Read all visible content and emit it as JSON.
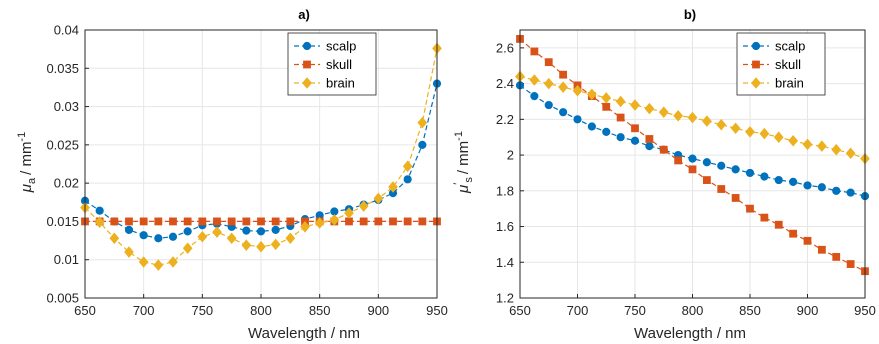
{
  "chart_data": [
    {
      "type": "line",
      "title": "a)",
      "xlabel": "Wavelength / nm",
      "ylabel": {
        "sym": "μ",
        "sub": "a",
        "unit": "/ mm",
        "sup": "-1"
      },
      "xlim": [
        650,
        950
      ],
      "ylim": [
        0.005,
        0.04
      ],
      "xticks": [
        650,
        700,
        750,
        800,
        850,
        900,
        950
      ],
      "yticks": [
        0.005,
        0.01,
        0.015,
        0.02,
        0.025,
        0.03,
        0.035,
        0.04
      ],
      "ytick_labels": [
        "0.005",
        "0.01",
        "0.015",
        "0.02",
        "0.025",
        "0.03",
        "0.035",
        "0.04"
      ],
      "grid": true,
      "legend_position": "top-right",
      "x": [
        650,
        662.5,
        675,
        687.5,
        700,
        712.5,
        725,
        737.5,
        750,
        762.5,
        775,
        787.5,
        800,
        812.5,
        825,
        837.5,
        850,
        862.5,
        875,
        887.5,
        900,
        912.5,
        925,
        937.5,
        950
      ],
      "series": [
        {
          "name": "scalp",
          "color": "#0072BD",
          "marker": "circle",
          "values": [
            0.0177,
            0.0164,
            0.015,
            0.0139,
            0.0132,
            0.0128,
            0.013,
            0.0137,
            0.0145,
            0.0147,
            0.0143,
            0.0138,
            0.0137,
            0.0139,
            0.0144,
            0.0153,
            0.0158,
            0.0163,
            0.0166,
            0.0172,
            0.0178,
            0.0187,
            0.0205,
            0.025,
            0.033
          ]
        },
        {
          "name": "skull",
          "color": "#D95319",
          "marker": "square",
          "values": [
            0.015,
            0.015,
            0.015,
            0.015,
            0.015,
            0.015,
            0.015,
            0.015,
            0.015,
            0.015,
            0.015,
            0.015,
            0.015,
            0.015,
            0.015,
            0.015,
            0.015,
            0.015,
            0.015,
            0.015,
            0.015,
            0.015,
            0.015,
            0.015,
            0.015
          ]
        },
        {
          "name": "brain",
          "color": "#EDB120",
          "marker": "diamond",
          "values": [
            0.0168,
            0.0149,
            0.0128,
            0.011,
            0.0097,
            0.0093,
            0.0097,
            0.0115,
            0.013,
            0.0136,
            0.0128,
            0.0119,
            0.0117,
            0.012,
            0.0128,
            0.0143,
            0.0148,
            0.0152,
            0.0161,
            0.017,
            0.018,
            0.0195,
            0.0222,
            0.0279,
            0.0376
          ]
        }
      ]
    },
    {
      "type": "line",
      "title": "b)",
      "xlabel": "Wavelength / nm",
      "ylabel": {
        "sym": "μ",
        "sub": "s",
        "prime": "′",
        "unit": "/ mm",
        "sup": "-1"
      },
      "xlim": [
        650,
        950
      ],
      "ylim": [
        1.2,
        2.7
      ],
      "xticks": [
        650,
        700,
        750,
        800,
        850,
        900,
        950
      ],
      "yticks": [
        1.2,
        1.4,
        1.6,
        1.8,
        2,
        2.2,
        2.4,
        2.6
      ],
      "ytick_labels": [
        "1.2",
        "1.4",
        "1.6",
        "1.8",
        "2",
        "2.2",
        "2.4",
        "2.6"
      ],
      "grid": true,
      "legend_position": "top-right",
      "x": [
        650,
        662.5,
        675,
        687.5,
        700,
        712.5,
        725,
        737.5,
        750,
        762.5,
        775,
        787.5,
        800,
        812.5,
        825,
        837.5,
        850,
        862.5,
        875,
        887.5,
        900,
        912.5,
        925,
        937.5,
        950
      ],
      "series": [
        {
          "name": "scalp",
          "color": "#0072BD",
          "marker": "circle",
          "values": [
            2.39,
            2.33,
            2.28,
            2.24,
            2.2,
            2.16,
            2.13,
            2.1,
            2.08,
            2.05,
            2.03,
            2.0,
            1.98,
            1.96,
            1.94,
            1.92,
            1.9,
            1.88,
            1.86,
            1.85,
            1.83,
            1.82,
            1.8,
            1.79,
            1.77
          ]
        },
        {
          "name": "skull",
          "color": "#D95319",
          "marker": "square",
          "values": [
            2.65,
            2.58,
            2.52,
            2.45,
            2.39,
            2.33,
            2.27,
            2.21,
            2.15,
            2.09,
            2.03,
            1.97,
            1.92,
            1.86,
            1.81,
            1.76,
            1.7,
            1.65,
            1.61,
            1.56,
            1.52,
            1.47,
            1.43,
            1.39,
            1.35
          ]
        },
        {
          "name": "brain",
          "color": "#EDB120",
          "marker": "diamond",
          "values": [
            2.44,
            2.42,
            2.4,
            2.38,
            2.36,
            2.34,
            2.32,
            2.3,
            2.28,
            2.26,
            2.24,
            2.22,
            2.21,
            2.19,
            2.17,
            2.15,
            2.13,
            2.12,
            2.1,
            2.08,
            2.06,
            2.05,
            2.03,
            2.01,
            1.98
          ]
        }
      ]
    }
  ]
}
